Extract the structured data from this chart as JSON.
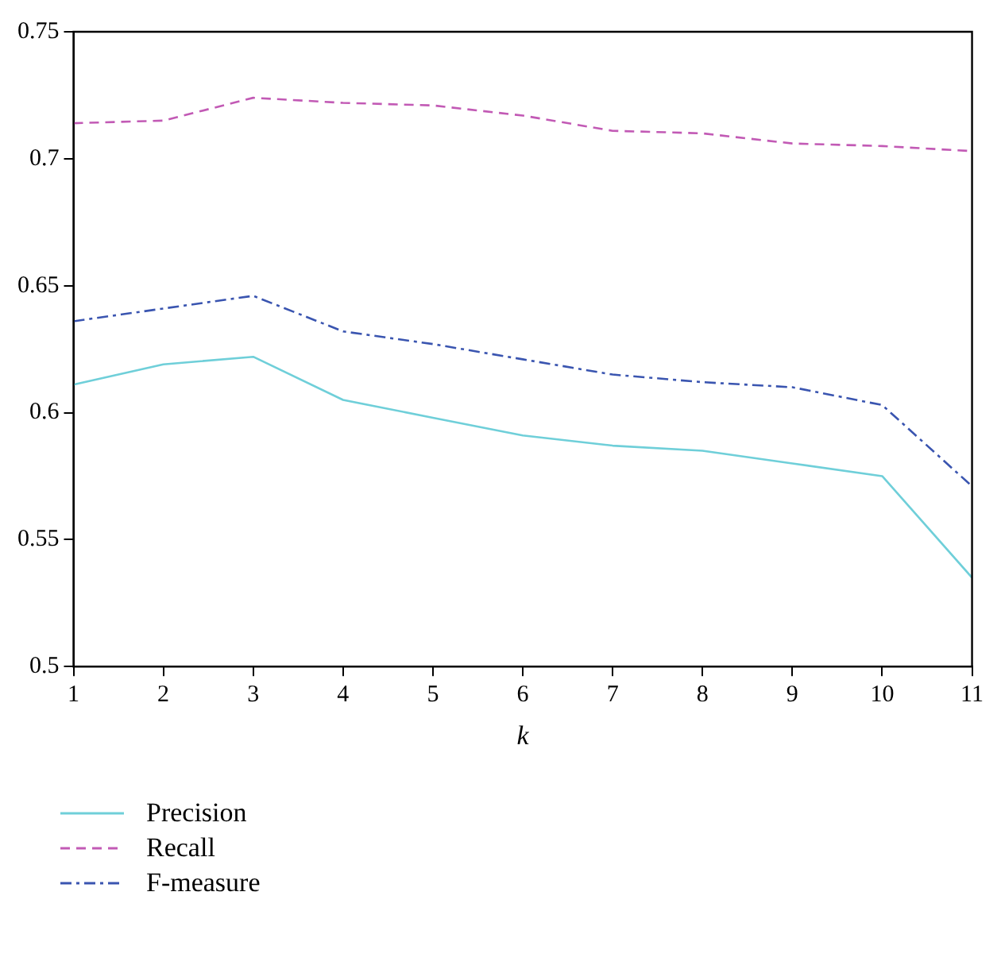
{
  "chart_data": {
    "type": "line",
    "xlabel": "k",
    "x": [
      1,
      2,
      3,
      4,
      5,
      6,
      7,
      8,
      9,
      10,
      11
    ],
    "series": [
      {
        "name": "Precision",
        "color": "#6fcfd9",
        "line_style": "solid",
        "values": [
          0.611,
          0.619,
          0.622,
          0.605,
          0.598,
          0.591,
          0.587,
          0.585,
          0.58,
          0.575,
          0.535
        ]
      },
      {
        "name": "Recall",
        "color": "#c25ab5",
        "line_style": "dashed",
        "values": [
          0.714,
          0.715,
          0.724,
          0.722,
          0.721,
          0.717,
          0.711,
          0.71,
          0.706,
          0.705,
          0.703
        ]
      },
      {
        "name": "F-measure",
        "color": "#3a55b0",
        "line_style": "dashdot",
        "values": [
          0.636,
          0.641,
          0.646,
          0.632,
          0.627,
          0.621,
          0.615,
          0.612,
          0.61,
          0.603,
          0.571
        ]
      }
    ],
    "xlim": [
      1,
      11
    ],
    "xticks": [
      1,
      2,
      3,
      4,
      5,
      6,
      7,
      8,
      9,
      10,
      11
    ],
    "ylim": [
      0.5,
      0.75
    ],
    "yticks": [
      0.5,
      0.55,
      0.6,
      0.65,
      0.7,
      0.75
    ],
    "grid": false,
    "legend": "bottom left",
    "marker": "none"
  }
}
